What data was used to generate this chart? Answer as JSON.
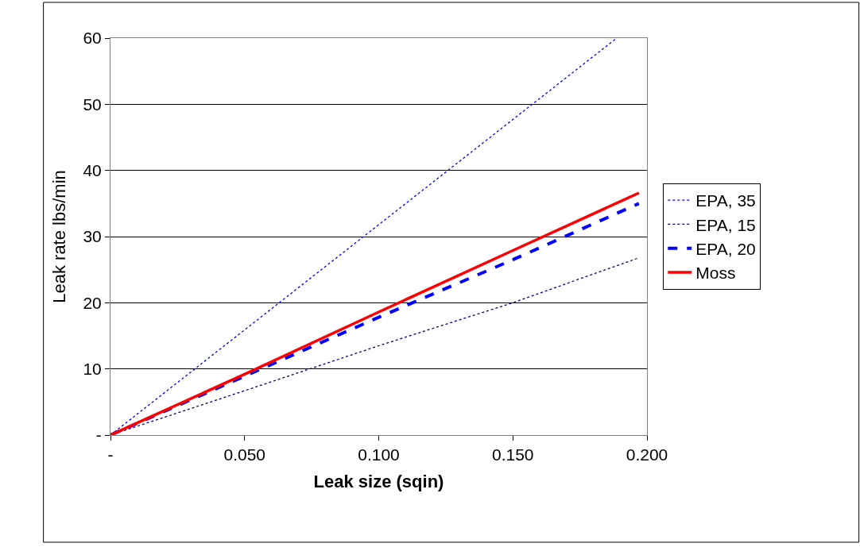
{
  "chart_data": {
    "type": "line",
    "xlabel": "Leak size (sqin)",
    "ylabel": "Leak rate lbs/min",
    "xlim": [
      0,
      0.2
    ],
    "xticks": [
      {
        "value": 0,
        "label": "-"
      },
      {
        "value": 0.05,
        "label": "0.050"
      },
      {
        "value": 0.1,
        "label": "0.100"
      },
      {
        "value": 0.15,
        "label": "0.150"
      },
      {
        "value": 0.2,
        "label": "0.200"
      }
    ],
    "ylim": [
      0,
      60
    ],
    "yticks": [
      {
        "value": 0,
        "label": "-"
      },
      10,
      20,
      30,
      40,
      50,
      60
    ],
    "grid": "y",
    "legend": "right",
    "marker": "none",
    "series": [
      {
        "name": "EPA, 35",
        "color": "#0000ff",
        "line_style": "dotted",
        "x": [
          0,
          0.05,
          0.1,
          0.15,
          0.1887
        ],
        "values": [
          0,
          15.9,
          31.8,
          47.7,
          60
        ]
      },
      {
        "name": "EPA, 15",
        "color": "#000080",
        "line_style": "dotted",
        "x": [
          0,
          0.05,
          0.1,
          0.15,
          0.197
        ],
        "values": [
          0,
          6.7,
          13.5,
          20,
          26.8
        ]
      },
      {
        "name": "EPA, 20",
        "color": "#0000ff",
        "line_style": "dashed",
        "x": [
          0,
          0.05,
          0.1,
          0.15,
          0.197
        ],
        "values": [
          0,
          8.9,
          17.8,
          26.5,
          35
        ]
      },
      {
        "name": "Moss",
        "color": "#ff0000",
        "line_style": "solid",
        "x": [
          0,
          0.05,
          0.1,
          0.15,
          0.197
        ],
        "values": [
          0,
          9.2,
          18.6,
          27.9,
          36.6
        ]
      }
    ]
  }
}
